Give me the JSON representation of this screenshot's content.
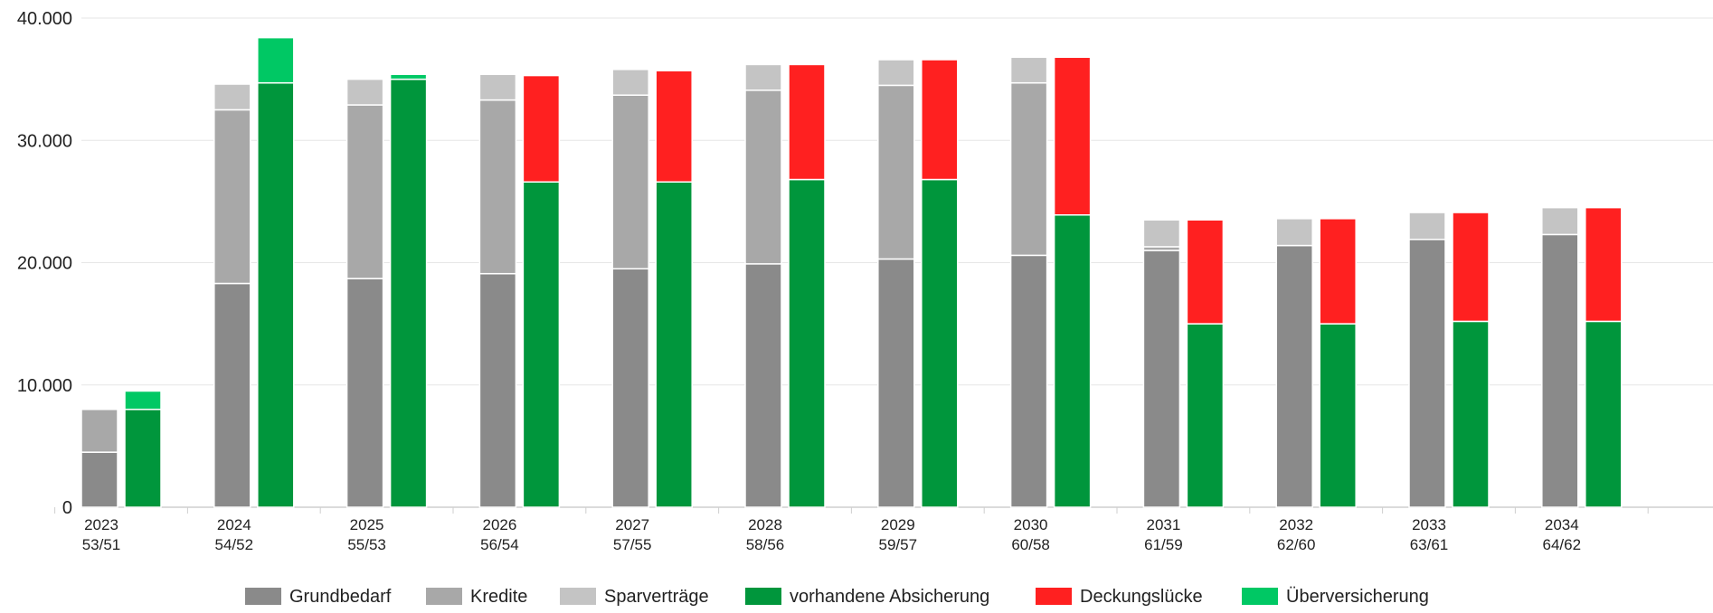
{
  "chart_data": {
    "type": "bar",
    "stacked": true,
    "categories": [
      "2023",
      "2024",
      "2025",
      "2026",
      "2027",
      "2028",
      "2029",
      "2030",
      "2031",
      "2032",
      "2033",
      "2034"
    ],
    "category_sublabels": [
      "53/51",
      "54/52",
      "55/53",
      "56/54",
      "57/55",
      "58/56",
      "59/57",
      "60/58",
      "61/59",
      "62/60",
      "63/61",
      "64/62"
    ],
    "ylim": [
      0,
      40000
    ],
    "yticks": [
      0,
      10000,
      20000,
      30000,
      40000
    ],
    "ytick_labels": [
      "0",
      "10.000",
      "20.000",
      "30.000",
      "40.000"
    ],
    "grid": true,
    "legend_position": "bottom",
    "bar_groups": [
      {
        "name": "Bedarf",
        "series": [
          {
            "name": "Grundbedarf",
            "color": "#8a8a8a",
            "values": [
              4500,
              18300,
              18700,
              19100,
              19500,
              19900,
              20300,
              20600,
              21000,
              21400,
              21900,
              22300
            ]
          },
          {
            "name": "Kredite",
            "color": "#a8a8a8",
            "values": [
              3500,
              14200,
              14200,
              14200,
              14200,
              14200,
              14200,
              14100,
              300,
              0,
              0,
              0
            ]
          },
          {
            "name": "Sparverträge",
            "color": "#c4c4c4",
            "values": [
              0,
              2100,
              2100,
              2100,
              2100,
              2100,
              2100,
              2100,
              2200,
              2200,
              2200,
              2200
            ]
          }
        ]
      },
      {
        "name": "Absicherung",
        "series": [
          {
            "name": "vorhandene Absicherung",
            "color": "#00963c",
            "values": [
              8000,
              34700,
              35000,
              26600,
              26600,
              26800,
              26800,
              23900,
              15000,
              15000,
              15200,
              15200
            ]
          },
          {
            "name": "Deckungslücke",
            "color": "#ff2020",
            "values": [
              0,
              0,
              0,
              8700,
              9100,
              9400,
              9800,
              12900,
              8500,
              8600,
              8900,
              9300
            ]
          },
          {
            "name": "Überversicherung",
            "color": "#00c864",
            "values": [
              1500,
              3700,
              400,
              0,
              0,
              0,
              0,
              0,
              0,
              0,
              0,
              0
            ]
          }
        ]
      }
    ],
    "legend": [
      "Grundbedarf",
      "Kredite",
      "Sparverträge",
      "vorhandene Absicherung",
      "Deckungslücke",
      "Überversicherung"
    ]
  }
}
